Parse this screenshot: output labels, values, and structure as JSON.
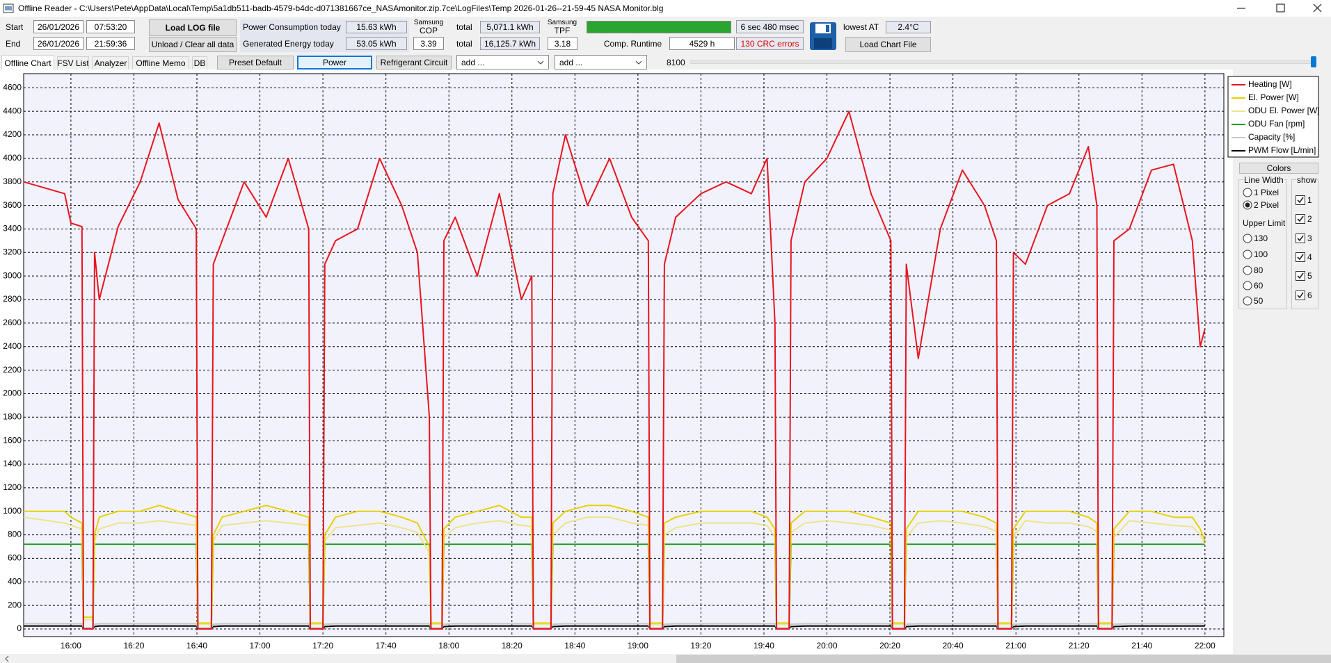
{
  "window": {
    "title": "Offline Reader - C:\\Users\\Pete\\AppData\\Local\\Temp\\5a1db511-badb-4579-b4dc-d071381667ce_NASAmonitor.zip.7ce\\LogFiles\\Temp 2026-01-26--21-59-45 NASA Monitor.blg"
  },
  "header": {
    "start_label": "Start",
    "start_date": "26/01/2026",
    "start_time": "07:53:20",
    "end_label": "End",
    "end_date": "26/01/2026",
    "end_time": "21:59:36",
    "load_log": "Load LOG file",
    "unload": "Unload / Clear all data",
    "power_label": "Power Consumption today",
    "power_value": "15.63 kWh",
    "generated_label": "Generated Energy today",
    "generated_value": "53.05 kWh",
    "cop_title_1": "Samsung",
    "cop_title_2": "COP",
    "cop_value": "3.39",
    "total_label_1": "total",
    "total_power": "5,071.1 kWh",
    "total_label_2": "total",
    "total_generated": "16,125.7 kWh",
    "tpf_title_1": "Samsung",
    "tpf_title_2": "TPF",
    "tpf_value": "3.18",
    "timing": "6 sec 480 msec",
    "runtime_label": "Comp. Runtime",
    "runtime_value": "4529 h",
    "crc_errors": "130 CRC errors",
    "lowest_at_label": "lowest AT",
    "lowest_at_value": "2.4°C",
    "load_chart": "Load Chart File"
  },
  "tabs": [
    "Offline Chart",
    "FSV List",
    "Analyzer",
    "Offline Memo",
    "DB"
  ],
  "selected_tab": 0,
  "toolbar": {
    "buttons": [
      "Preset Default",
      "Power",
      "Refrigerant Circuit"
    ],
    "active_button": 1,
    "selects": [
      "add ...",
      "add ..."
    ],
    "slider_value": "8100"
  },
  "panel": {
    "title": "Colors",
    "line_width_label": "Line Width",
    "line_width_options": [
      "1 Pixel",
      "2 Pixel"
    ],
    "line_width_selected": 1,
    "upper_limit_label": "Upper Limit",
    "upper_limit_options": [
      "130",
      "100",
      "80",
      "60",
      "50"
    ],
    "show_label": "show",
    "show_options": [
      "1",
      "2",
      "3",
      "4",
      "5",
      "6"
    ]
  },
  "chart_data": {
    "type": "line",
    "grid": true,
    "legend": "upper-right-outside",
    "line_width": 2,
    "xlim": [
      945,
      1326
    ],
    "ylim": [
      -65,
      4720
    ],
    "xticks": [
      {
        "value": 960,
        "label": "16:00"
      },
      {
        "value": 980,
        "label": "16:20"
      },
      {
        "value": 1000,
        "label": "16:40"
      },
      {
        "value": 1020,
        "label": "17:00"
      },
      {
        "value": 1040,
        "label": "17:20"
      },
      {
        "value": 1060,
        "label": "17:40"
      },
      {
        "value": 1080,
        "label": "18:00"
      },
      {
        "value": 1100,
        "label": "18:20"
      },
      {
        "value": 1120,
        "label": "18:40"
      },
      {
        "value": 1140,
        "label": "19:00"
      },
      {
        "value": 1160,
        "label": "19:20"
      },
      {
        "value": 1180,
        "label": "19:40"
      },
      {
        "value": 1200,
        "label": "20:00"
      },
      {
        "value": 1220,
        "label": "20:20"
      },
      {
        "value": 1240,
        "label": "20:40"
      },
      {
        "value": 1260,
        "label": "21:00"
      },
      {
        "value": 1280,
        "label": "21:20"
      },
      {
        "value": 1300,
        "label": "21:40"
      },
      {
        "value": 1320,
        "label": "22:00"
      }
    ],
    "yticks": [
      0,
      200,
      400,
      600,
      800,
      1000,
      1200,
      1400,
      1600,
      1800,
      2000,
      2200,
      2400,
      2600,
      2800,
      3000,
      3200,
      3400,
      3600,
      3800,
      4000,
      4200,
      4400,
      4600
    ],
    "x": [
      945,
      958,
      960,
      963.5,
      964,
      967,
      967.5,
      969,
      975,
      982,
      988,
      994,
      999.8,
      1000.3,
      1004.6,
      1005.2,
      1008,
      1015,
      1022,
      1029,
      1035.5,
      1036,
      1040,
      1040.6,
      1044,
      1051,
      1058,
      1065,
      1070,
      1073.8,
      1074.3,
      1077.8,
      1078.4,
      1082,
      1089,
      1096,
      1103,
      1106.3,
      1106.8,
      1112.4,
      1113,
      1117,
      1124,
      1131,
      1138,
      1143.3,
      1143.8,
      1147.8,
      1148.4,
      1152,
      1160,
      1168,
      1176,
      1181,
      1183.5,
      1184,
      1188,
      1188.6,
      1193,
      1200,
      1207,
      1214,
      1220.3,
      1220.8,
      1224.6,
      1225.2,
      1229,
      1236,
      1243,
      1250,
      1253.8,
      1254.3,
      1258.6,
      1259.2,
      1263,
      1270,
      1277,
      1283,
      1285.7,
      1286.2,
      1290.5,
      1291.1,
      1296,
      1303,
      1310,
      1316,
      1318.5,
      1320
    ],
    "series": [
      {
        "name": "Heating [W]",
        "color": "#e8141e",
        "values": [
          3800,
          3700,
          3450,
          3420,
          0,
          0,
          3200,
          2800,
          3420,
          3800,
          4300,
          3650,
          3400,
          0,
          0,
          3100,
          3300,
          3800,
          3500,
          4000,
          3400,
          0,
          0,
          3100,
          3300,
          3400,
          4000,
          3600,
          3200,
          1800,
          0,
          0,
          3300,
          3500,
          3000,
          3700,
          2800,
          3000,
          0,
          0,
          3700,
          4200,
          3600,
          4000,
          3500,
          3300,
          0,
          0,
          3100,
          3500,
          3700,
          3800,
          3700,
          4000,
          2600,
          0,
          0,
          3300,
          3800,
          4000,
          4400,
          3700,
          3300,
          0,
          0,
          3100,
          2300,
          3400,
          3900,
          3600,
          3300,
          0,
          0,
          3200,
          3100,
          3600,
          3700,
          4100,
          3600,
          0,
          0,
          3300,
          3400,
          3900,
          3950,
          3300,
          2400,
          2550
        ]
      },
      {
        "name": "El. Power [W]",
        "color": "#e6d200",
        "values": [
          1000,
          1000,
          950,
          900,
          100,
          100,
          800,
          950,
          1000,
          1000,
          1050,
          1000,
          950,
          50,
          50,
          800,
          950,
          1000,
          1050,
          1000,
          950,
          50,
          50,
          800,
          950,
          1000,
          1000,
          950,
          900,
          700,
          50,
          50,
          850,
          950,
          1000,
          1050,
          950,
          950,
          50,
          50,
          900,
          1000,
          1050,
          1050,
          1000,
          950,
          50,
          50,
          900,
          950,
          1000,
          1000,
          1000,
          950,
          850,
          50,
          50,
          900,
          1000,
          1000,
          1000,
          950,
          900,
          50,
          50,
          850,
          1000,
          1000,
          1000,
          950,
          900,
          50,
          50,
          850,
          1000,
          1000,
          1000,
          950,
          900,
          50,
          50,
          850,
          1000,
          1000,
          950,
          950,
          850,
          750
        ]
      },
      {
        "name": "ODU El. Power [W]",
        "color": "#ece48a",
        "values": [
          950,
          900,
          880,
          850,
          80,
          80,
          750,
          850,
          900,
          900,
          920,
          900,
          880,
          40,
          40,
          750,
          880,
          900,
          920,
          900,
          880,
          40,
          40,
          750,
          860,
          880,
          900,
          860,
          820,
          650,
          40,
          40,
          780,
          860,
          900,
          920,
          880,
          870,
          40,
          40,
          800,
          900,
          950,
          950,
          900,
          880,
          40,
          40,
          800,
          860,
          900,
          900,
          900,
          880,
          780,
          40,
          40,
          820,
          900,
          920,
          900,
          880,
          840,
          40,
          40,
          780,
          900,
          920,
          900,
          870,
          830,
          40,
          40,
          780,
          920,
          900,
          900,
          870,
          830,
          40,
          40,
          780,
          920,
          900,
          880,
          870,
          800,
          720
        ]
      },
      {
        "name": "ODU Fan [rpm]",
        "color": "#22a022",
        "values": [
          720,
          720,
          720,
          720,
          0,
          0,
          720,
          720,
          720,
          720,
          720,
          720,
          720,
          0,
          0,
          720,
          720,
          720,
          720,
          720,
          720,
          0,
          0,
          720,
          720,
          720,
          720,
          720,
          720,
          720,
          0,
          0,
          720,
          720,
          720,
          720,
          720,
          720,
          0,
          0,
          720,
          720,
          720,
          720,
          720,
          720,
          0,
          0,
          720,
          720,
          720,
          720,
          720,
          720,
          720,
          0,
          0,
          720,
          720,
          720,
          720,
          720,
          720,
          0,
          0,
          720,
          720,
          720,
          720,
          720,
          720,
          0,
          0,
          720,
          720,
          720,
          720,
          720,
          720,
          0,
          0,
          720,
          720,
          720,
          720,
          720,
          720,
          720
        ]
      },
      {
        "name": "Capacity [%]",
        "color": "#c8c8c8",
        "values": [
          45,
          45,
          45,
          45,
          10,
          10,
          40,
          45,
          45,
          45,
          45,
          45,
          45,
          10,
          10,
          40,
          45,
          45,
          45,
          45,
          45,
          10,
          10,
          40,
          45,
          45,
          45,
          45,
          45,
          45,
          10,
          10,
          40,
          45,
          45,
          45,
          45,
          45,
          10,
          10,
          40,
          45,
          45,
          45,
          45,
          45,
          10,
          10,
          40,
          45,
          45,
          45,
          45,
          45,
          45,
          10,
          10,
          40,
          45,
          45,
          45,
          45,
          45,
          10,
          10,
          40,
          45,
          45,
          45,
          45,
          45,
          10,
          10,
          40,
          45,
          45,
          45,
          45,
          45,
          10,
          10,
          40,
          45,
          45,
          45,
          45,
          45,
          45
        ]
      },
      {
        "name": "PWM Flow [L/min]",
        "color": "#000000",
        "values": [
          25,
          25,
          25,
          25,
          5,
          5,
          20,
          25,
          25,
          25,
          25,
          25,
          25,
          5,
          5,
          20,
          25,
          25,
          25,
          25,
          25,
          5,
          5,
          20,
          25,
          25,
          25,
          25,
          25,
          25,
          5,
          5,
          20,
          25,
          25,
          25,
          25,
          25,
          5,
          5,
          20,
          25,
          25,
          25,
          25,
          25,
          5,
          5,
          20,
          25,
          25,
          25,
          25,
          25,
          25,
          5,
          5,
          20,
          25,
          25,
          25,
          25,
          25,
          5,
          5,
          20,
          25,
          25,
          25,
          25,
          25,
          5,
          5,
          20,
          25,
          25,
          25,
          25,
          25,
          5,
          5,
          20,
          25,
          25,
          25,
          25,
          25,
          25
        ]
      }
    ]
  }
}
